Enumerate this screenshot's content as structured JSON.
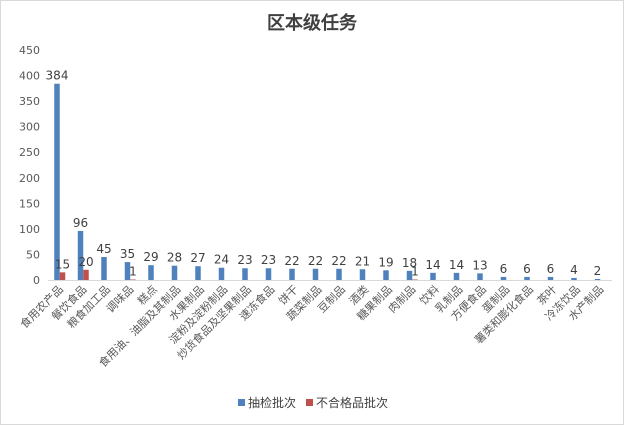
{
  "chart_data": {
    "type": "bar",
    "title": "区本级任务",
    "xlabel": "",
    "ylabel": "",
    "ylim": [
      0,
      450
    ],
    "yticks": [
      0,
      50,
      100,
      150,
      200,
      250,
      300,
      350,
      400,
      450
    ],
    "grid": false,
    "legend_position": "bottom",
    "categories": [
      "食用农产品",
      "餐饮食品",
      "粮食加工品",
      "调味品",
      "糕点",
      "食用油、油脂及其制品",
      "水果制品",
      "淀粉及淀粉制品",
      "炒货食品及坚果制品",
      "速冻食品",
      "饼干",
      "蔬菜制品",
      "豆制品",
      "酒类",
      "糖果制品",
      "肉制品",
      "饮料",
      "乳制品",
      "方便食品",
      "蛋制品",
      "薯类和膨化食品",
      "茶叶",
      "冷冻饮品",
      "水产制品"
    ],
    "series": [
      {
        "name": "抽检批次",
        "color": "#4f81bd",
        "values": [
          384,
          96,
          45,
          35,
          29,
          28,
          27,
          24,
          23,
          23,
          22,
          22,
          22,
          21,
          19,
          18,
          14,
          14,
          13,
          6,
          6,
          6,
          4,
          2
        ]
      },
      {
        "name": "不合格品批次",
        "color": "#c0504d",
        "values": [
          15,
          20,
          null,
          1,
          null,
          null,
          null,
          null,
          null,
          null,
          null,
          null,
          null,
          null,
          null,
          1,
          null,
          null,
          null,
          null,
          null,
          null,
          null,
          null
        ]
      }
    ]
  }
}
